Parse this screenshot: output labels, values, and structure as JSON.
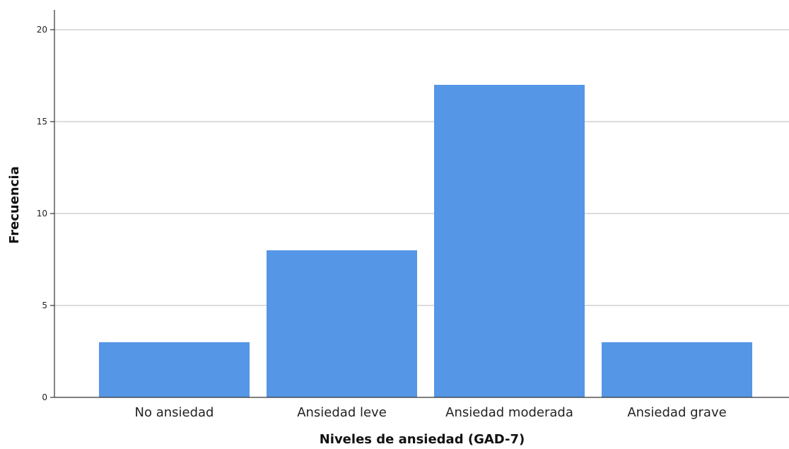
{
  "chart_data": {
    "type": "bar",
    "categories": [
      "No ansiedad",
      "Ansiedad leve",
      "Ansiedad moderada",
      "Ansiedad grave"
    ],
    "values": [
      3,
      8,
      17,
      3
    ],
    "xlabel": "Niveles de ansiedad (GAD-7)",
    "ylabel": "Frecuencia",
    "ylim": [
      0,
      20
    ],
    "yticks": [
      0,
      5,
      10,
      15,
      20
    ],
    "grid": true,
    "bar_color": "#5596E6",
    "grid_color": "#C8C8C8",
    "axis_color": "#333333"
  }
}
